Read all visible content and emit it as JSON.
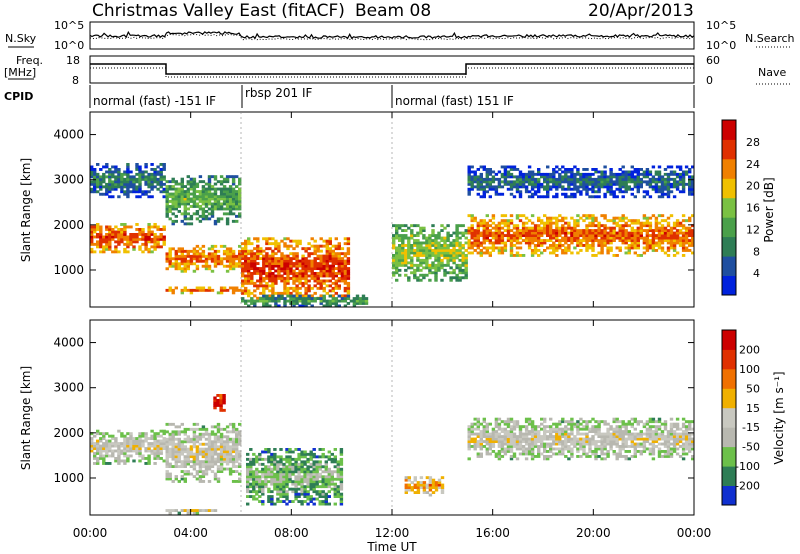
{
  "header": {
    "title": "Christmas Valley East (fitACF)",
    "beam": "Beam 08",
    "date": "20/Apr/2013"
  },
  "noise_panel": {
    "left_label": "N.Sky",
    "right_label": "N.Search",
    "left_ticks": [
      "10^5",
      "10^0"
    ],
    "right_ticks": [
      "10^5",
      "10^0"
    ]
  },
  "freq_panel": {
    "left_label_line1": "Freq.",
    "left_label_line2": "[MHz]",
    "right_label": "Nave",
    "left_ticks": [
      "18",
      "8"
    ],
    "right_ticks": [
      "60",
      "0"
    ]
  },
  "cpid_panel": {
    "label": "CPID",
    "modes": [
      {
        "start": 0,
        "end": 6,
        "text": "normal (fast) -151 IF"
      },
      {
        "start": 6,
        "end": 12,
        "text": "rbsp 201 IF"
      },
      {
        "start": 12,
        "end": 24,
        "text": "normal (fast) 151 IF"
      }
    ]
  },
  "chart_data": [
    {
      "type": "heatmap",
      "name": "power",
      "ylabel": "Slant Range [km]",
      "yticks": [
        "4000",
        "3000",
        "2000",
        "1000"
      ],
      "ylim": [
        180,
        4500
      ],
      "colorbar_label": "Power [dB]",
      "colorbar_ticks": [
        "28",
        "24",
        "20",
        "16",
        "12",
        "8",
        "4"
      ],
      "colors": [
        "#0022dd",
        "#1f4fa0",
        "#2e7d55",
        "#4aa04a",
        "#7ac143",
        "#f0c000",
        "#f08000",
        "#e03000",
        "#cc0000"
      ],
      "bands": [
        {
          "t": [
            0,
            2.9
          ],
          "r": [
            1380,
            2020
          ],
          "level": 0.82
        },
        {
          "t": [
            0,
            2.9
          ],
          "r": [
            2600,
            3350
          ],
          "level": 0.3
        },
        {
          "t": [
            3.0,
            6.0
          ],
          "r": [
            950,
            1550
          ],
          "level": 0.78
        },
        {
          "t": [
            3.0,
            6.0
          ],
          "r": [
            2000,
            3100
          ],
          "level": 0.45
        },
        {
          "t": [
            3.0,
            6.0
          ],
          "r": [
            470,
            620
          ],
          "level": 0.75
        },
        {
          "t": [
            6.0,
            10.3
          ],
          "r": [
            350,
            1700
          ],
          "level": 0.85
        },
        {
          "t": [
            6.0,
            11.0
          ],
          "r": [
            180,
            420
          ],
          "level": 0.4
        },
        {
          "t": [
            12.0,
            14.9
          ],
          "r": [
            750,
            2000
          ],
          "level": 0.55
        },
        {
          "t": [
            15.0,
            24.0
          ],
          "r": [
            1300,
            2200
          ],
          "level": 0.8
        },
        {
          "t": [
            15.0,
            24.0
          ],
          "r": [
            2600,
            3300
          ],
          "level": 0.25
        }
      ]
    },
    {
      "type": "heatmap",
      "name": "velocity",
      "ylabel": "Slant Range [km]",
      "yticks": [
        "4000",
        "3000",
        "2000",
        "1000"
      ],
      "ylim": [
        180,
        4500
      ],
      "colorbar_label": "Velocity [m s⁻¹]",
      "colorbar_ticks": [
        "200",
        "100",
        "50",
        "15",
        "-15",
        "-50",
        "-100",
        "-200"
      ],
      "colors": [
        "#1030d0",
        "#2e7d55",
        "#6cc04a",
        "#b8b8b0",
        "#c8c8c0",
        "#f0b000",
        "#f07000",
        "#e03000",
        "#cc0000"
      ],
      "bands": [
        {
          "t": [
            0,
            2.9
          ],
          "r": [
            1300,
            2050
          ],
          "level": 0.5
        },
        {
          "t": [
            3.0,
            6.0
          ],
          "r": [
            900,
            2200
          ],
          "level": 0.5
        },
        {
          "t": [
            4.9,
            5.3
          ],
          "r": [
            2420,
            2850
          ],
          "level": 0.97
        },
        {
          "t": [
            6.2,
            10.0
          ],
          "r": [
            400,
            1650
          ],
          "level": 0.35
        },
        {
          "t": [
            12.5,
            14.0
          ],
          "r": [
            600,
            1000
          ],
          "level": 0.68
        },
        {
          "t": [
            15.0,
            24.0
          ],
          "r": [
            1400,
            2300
          ],
          "level": 0.5
        },
        {
          "t": [
            3.0,
            5.0
          ],
          "r": [
            200,
            300
          ],
          "level": 0.5
        }
      ]
    }
  ],
  "xaxis": {
    "label": "Time UT",
    "ticks": [
      "00:00",
      "04:00",
      "08:00",
      "12:00",
      "16:00",
      "20:00",
      "00:00"
    ]
  }
}
